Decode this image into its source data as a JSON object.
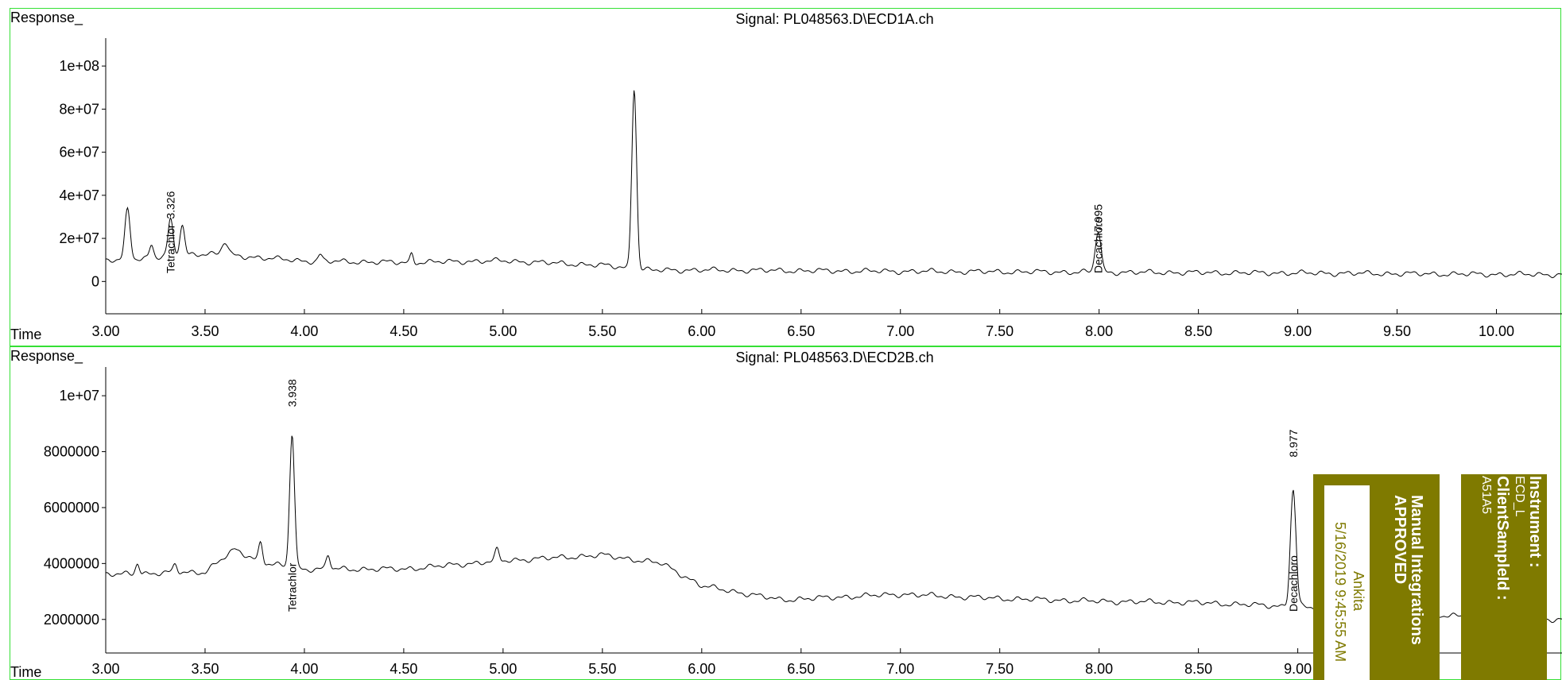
{
  "chart_data": [
    {
      "type": "line",
      "title": "Signal: PL048563.D\\ECD1A.ch",
      "ylabel": "Response_",
      "xlabel": "Time",
      "xlim": [
        3.0,
        10.33
      ],
      "ylim": [
        -15000000,
        110000000
      ],
      "x_ticks": [
        "3.00",
        "3.50",
        "4.00",
        "4.50",
        "5.00",
        "5.50",
        "6.00",
        "6.50",
        "7.00",
        "7.50",
        "8.00",
        "8.50",
        "9.00",
        "9.50",
        "10.00"
      ],
      "y_ticks": [
        {
          "value": 100000000,
          "label": "1e+08"
        },
        {
          "value": 80000000,
          "label": "8e+07"
        },
        {
          "value": 60000000,
          "label": "6e+07"
        },
        {
          "value": 40000000,
          "label": "4e+07"
        },
        {
          "value": 20000000,
          "label": "2e+07"
        },
        {
          "value": 0,
          "label": "0"
        }
      ],
      "baseline": [
        [
          3.0,
          9500000
        ],
        [
          3.5,
          13000000
        ],
        [
          4.0,
          9500000
        ],
        [
          4.5,
          8800000
        ],
        [
          5.0,
          9600000
        ],
        [
          5.5,
          7500000
        ],
        [
          5.75,
          5200000
        ],
        [
          6.0,
          5300000
        ],
        [
          7.0,
          4700000
        ],
        [
          8.0,
          4300000
        ],
        [
          9.0,
          3900000
        ],
        [
          10.0,
          3300000
        ],
        [
          10.33,
          3200000
        ]
      ],
      "peaks": [
        {
          "rt": 3.11,
          "height": 23000000,
          "width": 0.013
        },
        {
          "rt": 3.23,
          "height": 6000000,
          "width": 0.01
        },
        {
          "rt": 3.326,
          "height": 17000000,
          "width": 0.012
        },
        {
          "rt": 3.385,
          "height": 14000000,
          "width": 0.012
        },
        {
          "rt": 3.6,
          "height": 6000000,
          "width": 0.015
        },
        {
          "rt": 4.08,
          "height": 3000000,
          "width": 0.01
        },
        {
          "rt": 4.54,
          "height": 4000000,
          "width": 0.008
        },
        {
          "rt": 5.66,
          "height": 84000000,
          "width": 0.012
        },
        {
          "rt": 7.995,
          "height": 19000000,
          "width": 0.014
        }
      ],
      "peak_labels": [
        {
          "rt": 3.326,
          "label": "3.326",
          "response": 29000000
        },
        {
          "rt": 7.995,
          "label": "7.995",
          "response": 23000000
        }
      ],
      "compound_labels": [
        {
          "rt": 3.326,
          "name": "Tetrachlor"
        },
        {
          "rt": 7.995,
          "name": "Decachloro"
        }
      ]
    },
    {
      "type": "line",
      "title": "Signal: PL048563.D\\ECD2B.ch",
      "ylabel": "Response_",
      "xlabel": "Time",
      "xlim": [
        3.0,
        10.33
      ],
      "ylim": [
        800000,
        10800000
      ],
      "x_ticks": [
        "3.00",
        "3.50",
        "4.00",
        "4.50",
        "5.00",
        "5.50",
        "6.00",
        "6.50",
        "7.00",
        "7.50",
        "8.00",
        "8.50",
        "9.00"
      ],
      "y_ticks": [
        {
          "value": 10000000,
          "label": "1e+07"
        },
        {
          "value": 8000000,
          "label": "8000000"
        },
        {
          "value": 6000000,
          "label": "6000000"
        },
        {
          "value": 4000000,
          "label": "4000000"
        },
        {
          "value": 2000000,
          "label": "2000000"
        }
      ],
      "baseline": [
        [
          3.0,
          3600000
        ],
        [
          3.5,
          3700000
        ],
        [
          3.65,
          4500000
        ],
        [
          3.8,
          4000000
        ],
        [
          4.0,
          3800000
        ],
        [
          4.5,
          3800000
        ],
        [
          5.0,
          4100000
        ],
        [
          5.5,
          4300000
        ],
        [
          5.8,
          4000000
        ],
        [
          6.0,
          3200000
        ],
        [
          6.4,
          2700000
        ],
        [
          7.0,
          2900000
        ],
        [
          7.5,
          2750000
        ],
        [
          8.0,
          2650000
        ],
        [
          8.5,
          2600000
        ],
        [
          9.0,
          2450000
        ],
        [
          9.5,
          2250000
        ],
        [
          10.0,
          2050000
        ],
        [
          10.33,
          2000000
        ]
      ],
      "peaks": [
        {
          "rt": 3.16,
          "height": 400000,
          "width": 0.01
        },
        {
          "rt": 3.35,
          "height": 300000,
          "width": 0.01
        },
        {
          "rt": 3.78,
          "height": 700000,
          "width": 0.01
        },
        {
          "rt": 3.938,
          "height": 4800000,
          "width": 0.012
        },
        {
          "rt": 4.12,
          "height": 500000,
          "width": 0.01
        },
        {
          "rt": 4.97,
          "height": 400000,
          "width": 0.01
        },
        {
          "rt": 8.977,
          "height": 4200000,
          "width": 0.014
        }
      ],
      "peak_labels": [
        {
          "rt": 3.938,
          "label": "3.938",
          "response": 9600000
        },
        {
          "rt": 8.977,
          "label": "8.977",
          "response": 7800000
        }
      ],
      "compound_labels": [
        {
          "rt": 3.938,
          "name": "Tetrachlor"
        },
        {
          "rt": 8.977,
          "name": "Decachloro"
        }
      ]
    }
  ],
  "stamp": {
    "title_line1": "Manual Integrations",
    "title_line2": "APPROVED",
    "user": "Ankita",
    "timestamp": "5/16/2019 9:45:55 AM",
    "instrument_label": "Instrument :",
    "instrument_value": "ECD_L",
    "client_label": "ClientSampleId :",
    "client_value": "A51A5",
    "bg_color": "#7f7a00",
    "frame_color": "#35e035"
  }
}
